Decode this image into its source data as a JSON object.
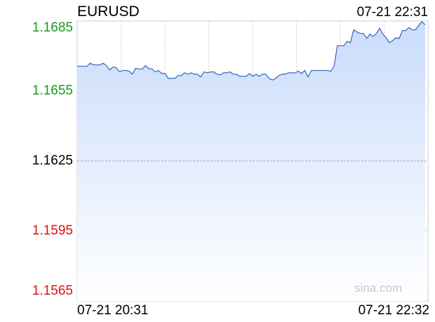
{
  "header": {
    "symbol": "EURUSD",
    "timestamp": "07-21 22:31"
  },
  "watermark": "sina.com",
  "colors": {
    "up": "#1a9a1a",
    "down": "#dd1111",
    "neutral": "#000000",
    "line": "#3366bb",
    "fill_top": "#c9dcfb",
    "fill_bottom": "#ffffff",
    "grid": "#cccccc",
    "baseline": "#9aa0c8"
  },
  "chart_data": {
    "type": "area",
    "title": "EURUSD",
    "xlabel": "",
    "ylabel": "",
    "ylim": [
      1.1565,
      1.1685
    ],
    "y_ticks": [
      {
        "label": "1.1685",
        "value": 1.1685,
        "tone": "up"
      },
      {
        "label": "1.1655",
        "value": 1.1655,
        "tone": "up"
      },
      {
        "label": "1.1625",
        "value": 1.1625,
        "tone": "neutral"
      },
      {
        "label": "1.1595",
        "value": 1.1595,
        "tone": "down"
      },
      {
        "label": "1.1565",
        "value": 1.1565,
        "tone": "down"
      }
    ],
    "reference_value": 1.1625,
    "x_labels": [
      "07-21 20:31",
      "07-21 22:32"
    ],
    "vertical_gridlines": 7,
    "grid": true,
    "series": [
      {
        "values": [
          1.16656,
          1.16656,
          1.16656,
          1.16656,
          1.16669,
          1.16662,
          1.16662,
          1.16662,
          1.16669,
          1.16659,
          1.1664,
          1.16653,
          1.1665,
          1.16632,
          1.16638,
          1.16638,
          1.16635,
          1.16622,
          1.16647,
          1.16644,
          1.16644,
          1.16659,
          1.16647,
          1.16644,
          1.16632,
          1.16638,
          1.16625,
          1.16625,
          1.16604,
          1.16604,
          1.16604,
          1.16616,
          1.16616,
          1.16628,
          1.16622,
          1.16628,
          1.16622,
          1.16622,
          1.1661,
          1.16632,
          1.16628,
          1.16632,
          1.16632,
          1.16622,
          1.16619,
          1.16628,
          1.16628,
          1.16632,
          1.16622,
          1.16622,
          1.16613,
          1.16613,
          1.16613,
          1.16625,
          1.16613,
          1.16622,
          1.16613,
          1.16622,
          1.16622,
          1.16604,
          1.16597,
          1.16604,
          1.16616,
          1.16622,
          1.16622,
          1.16628,
          1.16628,
          1.16628,
          1.16635,
          1.16625,
          1.16638,
          1.1661,
          1.16638,
          1.16638,
          1.16638,
          1.16638,
          1.16638,
          1.16638,
          1.16635,
          1.16656,
          1.16744,
          1.16744,
          1.16744,
          1.16763,
          1.16757,
          1.16812,
          1.16803,
          1.16797,
          1.16797,
          1.16775,
          1.16794,
          1.16784,
          1.16797,
          1.16819,
          1.16794,
          1.16778,
          1.16757,
          1.16766,
          1.16778,
          1.16775,
          1.16809,
          1.16809,
          1.16822,
          1.16812,
          1.16812,
          1.16831,
          1.16847,
          1.16834
        ]
      }
    ]
  }
}
